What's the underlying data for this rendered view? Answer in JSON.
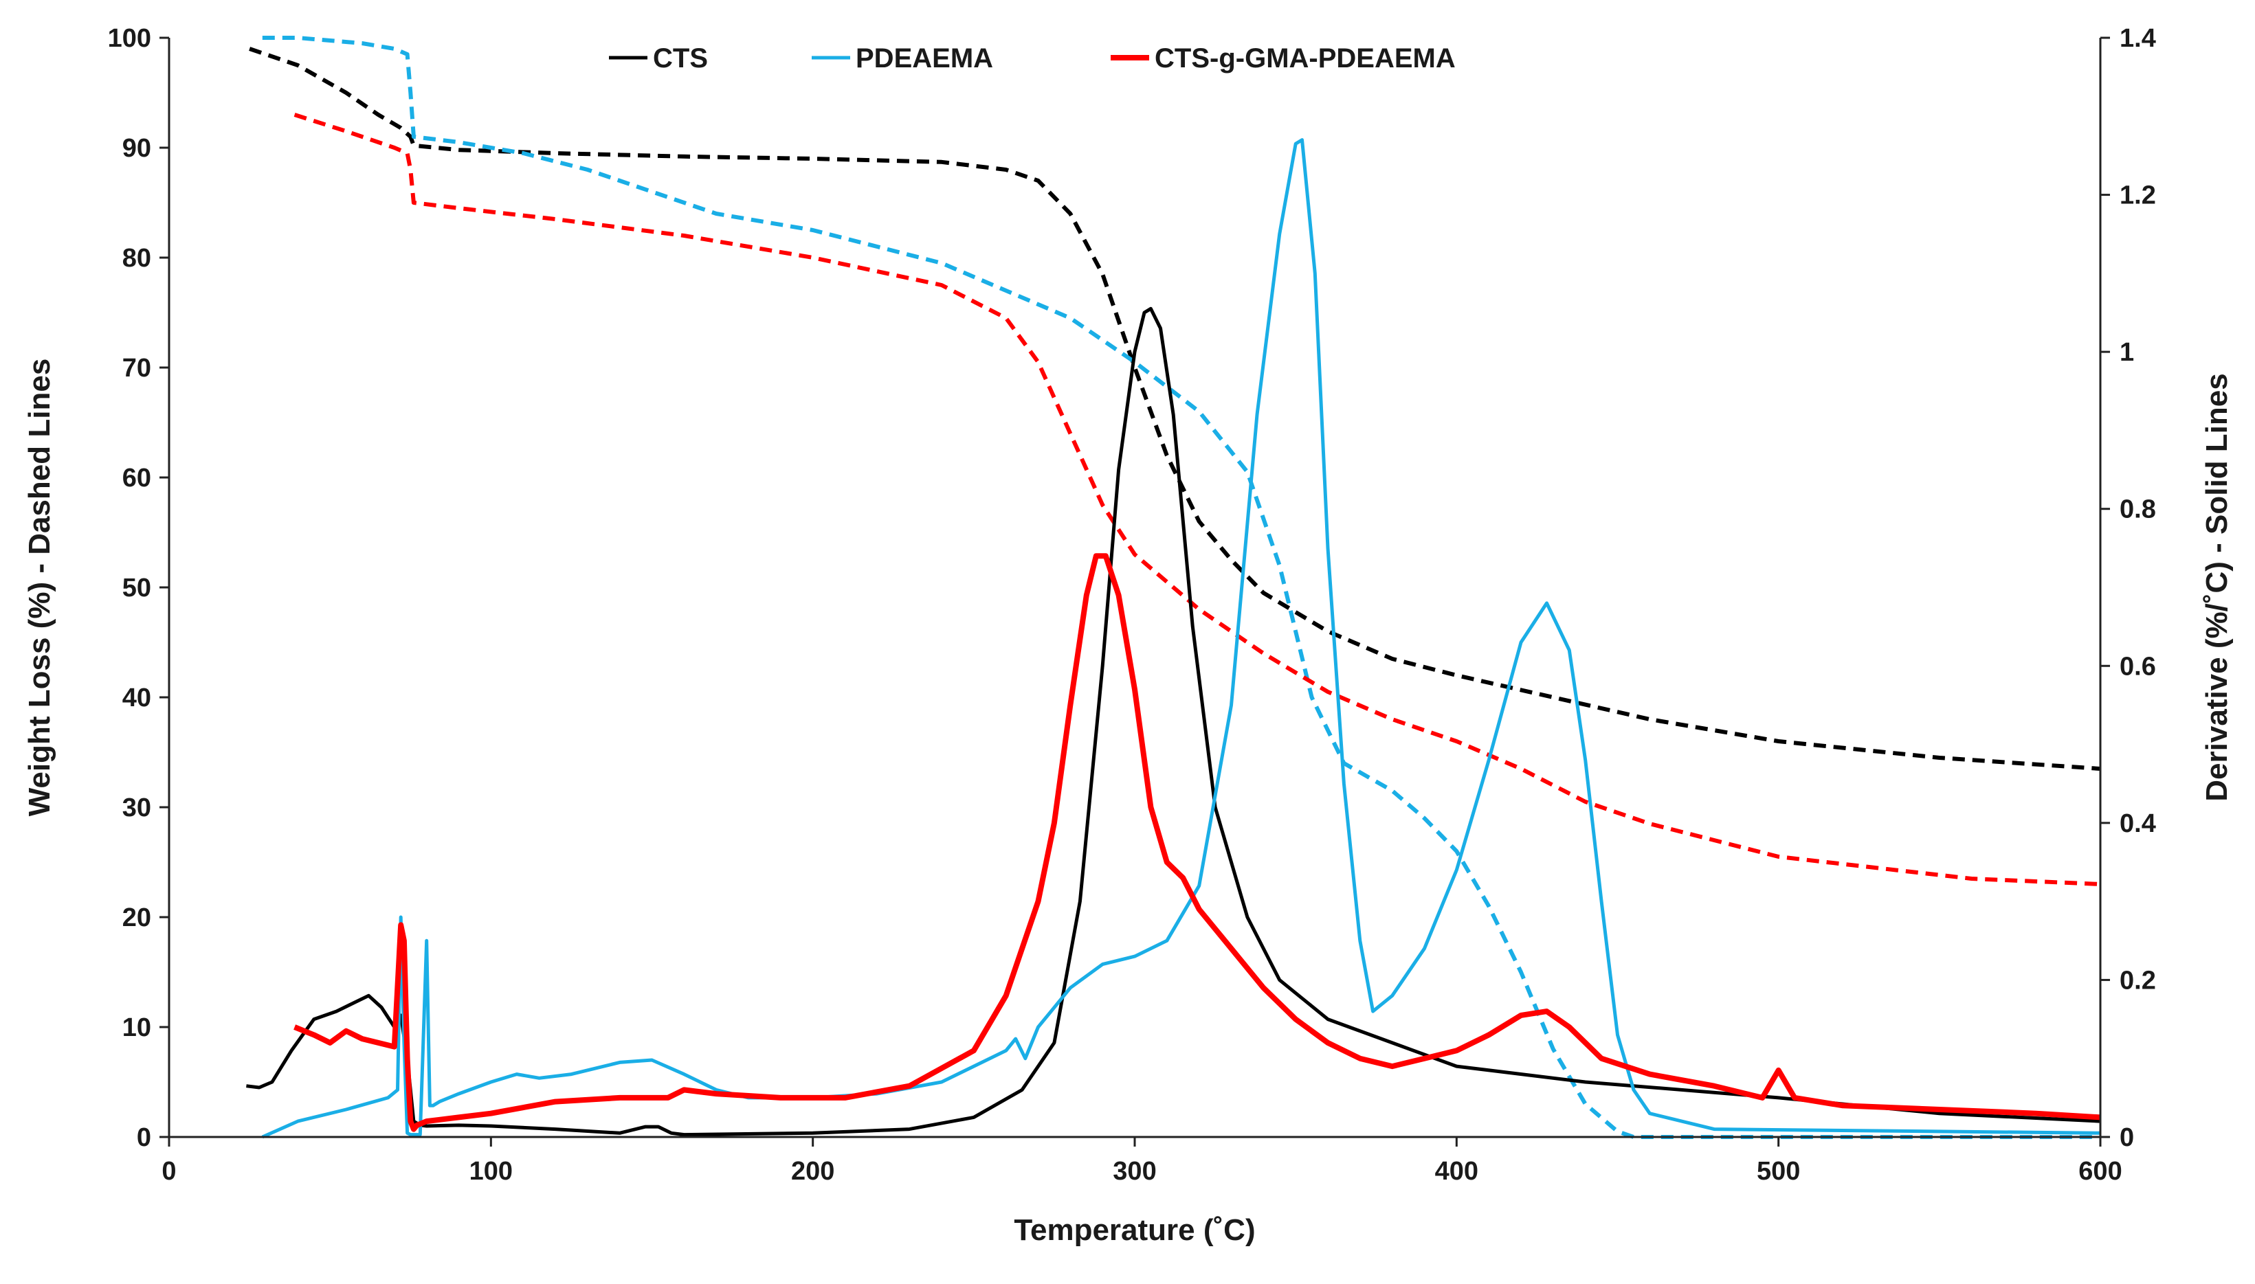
{
  "chart_data": {
    "type": "line",
    "title": "",
    "xlabel": "Temperature (˚C)",
    "ylabel_left": "Weight Loss (%) - Dashed Lines",
    "ylabel_right": "Derivative (%/˚C) - Solid Lines",
    "xlim": [
      0,
      600
    ],
    "ylim_left": [
      0,
      100
    ],
    "ylim_right": [
      0,
      1.4
    ],
    "x_ticks": [
      "0",
      "100",
      "200",
      "300",
      "400",
      "500",
      "600"
    ],
    "y_left_ticks": [
      "0",
      "10",
      "20",
      "30",
      "40",
      "50",
      "60",
      "70",
      "80",
      "90",
      "100"
    ],
    "y_right_ticks": [
      "0",
      "0.2",
      "0.4",
      "0.6",
      "0.8",
      "1",
      "1.2",
      "1.4"
    ],
    "grid": false,
    "legend_position": "top-center",
    "legend": [
      {
        "name": "CTS",
        "color": "#000000"
      },
      {
        "name": "PDEAEMA",
        "color": "#1aaee6"
      },
      {
        "name": "CTS-g-GMA-PDEAEMA",
        "color": "#ff0000"
      }
    ],
    "series": [
      {
        "name": "CTS",
        "kind": "weight_loss",
        "axis": "left",
        "style": "dashed",
        "color": "#000000",
        "x": [
          25,
          40,
          55,
          65,
          72,
          75,
          76,
          90,
          120,
          160,
          200,
          240,
          260,
          270,
          280,
          290,
          300,
          310,
          320,
          330,
          340,
          360,
          380,
          400,
          430,
          460,
          500,
          550,
          600
        ],
        "y": [
          99,
          97.5,
          95,
          93,
          91.8,
          91,
          90.2,
          89.8,
          89.5,
          89.2,
          89,
          88.7,
          88,
          87,
          84,
          78.5,
          70,
          62,
          56,
          52.5,
          49.5,
          46,
          43.5,
          42,
          40,
          38,
          36,
          34.5,
          33.5
        ]
      },
      {
        "name": "PDEAEMA",
        "kind": "weight_loss",
        "axis": "left",
        "style": "dashed",
        "color": "#1aaee6",
        "x": [
          29,
          40,
          60,
          70,
          74,
          75,
          76,
          90,
          110,
          130,
          150,
          170,
          200,
          220,
          240,
          260,
          280,
          300,
          320,
          335,
          345,
          355,
          365,
          380,
          390,
          400,
          410,
          420,
          430,
          440,
          450,
          455,
          460,
          600
        ],
        "y": [
          100,
          100,
          99.5,
          99,
          98.5,
          95,
          91,
          90.5,
          89.5,
          88,
          86,
          84,
          82.5,
          81,
          79.5,
          77,
          74.5,
          70.5,
          66,
          60.5,
          52,
          40,
          34,
          31.5,
          29,
          26,
          21,
          15,
          8,
          3,
          0.5,
          0,
          0,
          0
        ]
      },
      {
        "name": "CTS-g-GMA-PDEAEMA",
        "kind": "weight_loss",
        "axis": "left",
        "style": "dashed",
        "color": "#ff0000",
        "x": [
          39,
          55,
          70,
          74,
          75,
          76,
          90,
          120,
          160,
          200,
          240,
          260,
          270,
          280,
          290,
          300,
          320,
          340,
          360,
          380,
          400,
          420,
          440,
          460,
          480,
          500,
          530,
          560,
          600
        ],
        "y": [
          93,
          91.5,
          90,
          89.5,
          88,
          85,
          84.5,
          83.5,
          82,
          80,
          77.5,
          74.5,
          70.5,
          64,
          57.5,
          53,
          48,
          44,
          40.5,
          38,
          36,
          33.5,
          30.5,
          28.5,
          27,
          25.5,
          24.5,
          23.5,
          23
        ]
      },
      {
        "name": "CTS",
        "kind": "derivative",
        "axis": "right",
        "style": "solid",
        "color": "#000000",
        "x": [
          24,
          28,
          32,
          38,
          45,
          52,
          58,
          62,
          66,
          70,
          72,
          74,
          76,
          78,
          80,
          90,
          100,
          120,
          140,
          148,
          152,
          156,
          160,
          200,
          230,
          250,
          265,
          275,
          283,
          290,
          295,
          300,
          303,
          305,
          308,
          312,
          318,
          325,
          335,
          345,
          360,
          380,
          400,
          440,
          500,
          550,
          600
        ],
        "y": [
          0.065,
          0.063,
          0.07,
          0.11,
          0.15,
          0.16,
          0.172,
          0.18,
          0.165,
          0.14,
          0.155,
          0.1,
          0.02,
          0.015,
          0.014,
          0.015,
          0.014,
          0.01,
          0.005,
          0.013,
          0.013,
          0.005,
          0.003,
          0.005,
          0.01,
          0.025,
          0.06,
          0.12,
          0.3,
          0.6,
          0.85,
          1.0,
          1.05,
          1.055,
          1.03,
          0.92,
          0.65,
          0.42,
          0.28,
          0.2,
          0.15,
          0.12,
          0.09,
          0.07,
          0.05,
          0.03,
          0.02
        ]
      },
      {
        "name": "PDEAEMA",
        "kind": "derivative",
        "axis": "right",
        "style": "solid",
        "color": "#1aaee6",
        "x": [
          29,
          40,
          55,
          68,
          71,
          72,
          73,
          74,
          75,
          78,
          80,
          81,
          82,
          84,
          90,
          100,
          108,
          115,
          125,
          140,
          150,
          160,
          170,
          180,
          200,
          220,
          240,
          260,
          263,
          266,
          270,
          280,
          290,
          300,
          310,
          320,
          330,
          338,
          345,
          350,
          352,
          356,
          360,
          365,
          370,
          374,
          380,
          390,
          400,
          410,
          420,
          428,
          435,
          440,
          445,
          450,
          455,
          460,
          480,
          600
        ],
        "y": [
          0.0,
          0.02,
          0.035,
          0.05,
          0.06,
          0.28,
          0.12,
          0.005,
          0.003,
          0.003,
          0.25,
          0.04,
          0.04,
          0.045,
          0.055,
          0.07,
          0.08,
          0.075,
          0.08,
          0.095,
          0.098,
          0.08,
          0.06,
          0.05,
          0.05,
          0.055,
          0.07,
          0.11,
          0.125,
          0.1,
          0.14,
          0.19,
          0.22,
          0.23,
          0.25,
          0.32,
          0.55,
          0.92,
          1.15,
          1.265,
          1.27,
          1.1,
          0.75,
          0.45,
          0.25,
          0.16,
          0.18,
          0.24,
          0.34,
          0.48,
          0.63,
          0.68,
          0.62,
          0.48,
          0.3,
          0.13,
          0.06,
          0.03,
          0.01,
          0.005
        ]
      },
      {
        "name": "CTS-g-GMA-PDEAEMA",
        "kind": "derivative",
        "axis": "right",
        "style": "solid",
        "color": "#ff0000",
        "x": [
          39,
          45,
          50,
          55,
          60,
          65,
          70,
          72,
          73,
          74,
          75,
          76,
          77,
          80,
          90,
          100,
          120,
          140,
          155,
          160,
          170,
          190,
          210,
          230,
          250,
          260,
          270,
          275,
          280,
          285,
          288,
          291,
          295,
          300,
          305,
          310,
          315,
          320,
          330,
          340,
          350,
          360,
          370,
          380,
          390,
          400,
          410,
          420,
          428,
          435,
          445,
          460,
          480,
          495,
          500,
          505,
          520,
          550,
          580,
          600
        ],
        "y": [
          0.14,
          0.13,
          0.12,
          0.135,
          0.125,
          0.12,
          0.115,
          0.27,
          0.25,
          0.1,
          0.02,
          0.01,
          0.015,
          0.02,
          0.025,
          0.03,
          0.045,
          0.05,
          0.05,
          0.06,
          0.055,
          0.05,
          0.05,
          0.065,
          0.11,
          0.18,
          0.3,
          0.4,
          0.55,
          0.69,
          0.74,
          0.74,
          0.69,
          0.57,
          0.42,
          0.35,
          0.33,
          0.29,
          0.24,
          0.19,
          0.15,
          0.12,
          0.1,
          0.09,
          0.1,
          0.11,
          0.13,
          0.155,
          0.16,
          0.14,
          0.1,
          0.08,
          0.065,
          0.05,
          0.085,
          0.05,
          0.04,
          0.035,
          0.03,
          0.025
        ]
      }
    ]
  }
}
